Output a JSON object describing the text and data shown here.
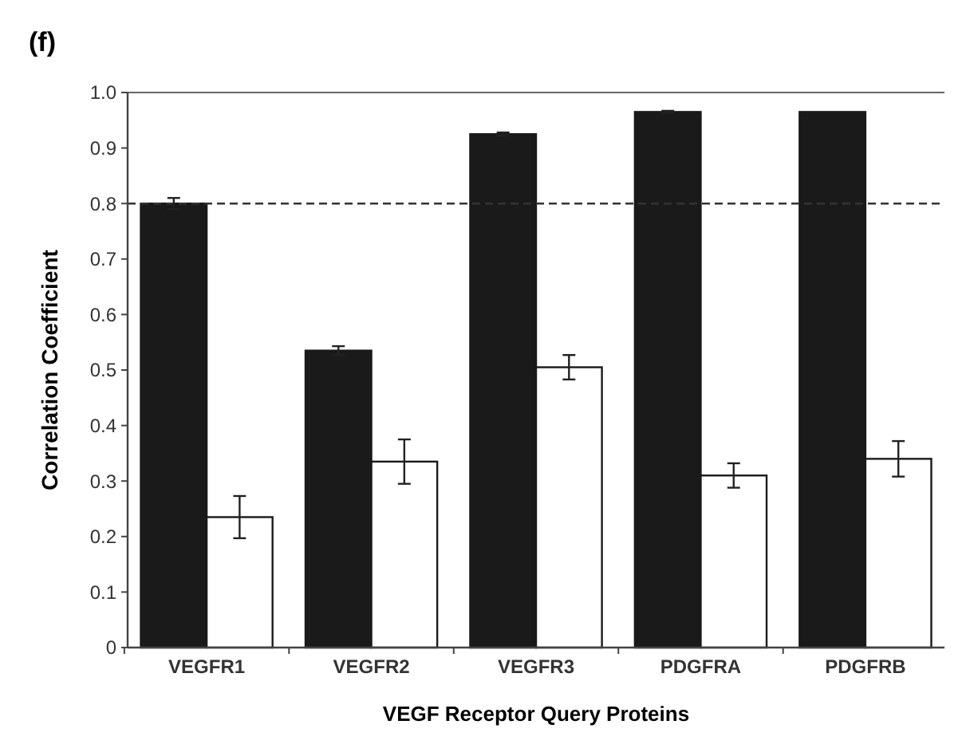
{
  "chart_data": {
    "type": "bar",
    "title": "(f)",
    "xlabel": "VEGF Receptor Query Proteins",
    "ylabel": "Correlation Coefficient",
    "categories": [
      "VEGFR1",
      "VEGFR2",
      "VEGFR3",
      "PDGFRA",
      "PDGFRB"
    ],
    "series": [
      {
        "color": "#1a1a1a",
        "values": [
          0.8,
          0.535,
          0.925,
          0.965,
          0.965
        ],
        "errors": [
          0.01,
          0.008,
          0.003,
          0.002,
          null
        ]
      },
      {
        "color": "#ffffff",
        "values": [
          0.235,
          0.335,
          0.505,
          0.31,
          0.34
        ],
        "errors": [
          0.038,
          0.04,
          0.022,
          0.022,
          0.032
        ]
      }
    ],
    "ylim": [
      0,
      1
    ],
    "yticks": [
      0,
      0.1,
      0.2,
      0.3,
      0.4,
      0.5,
      0.6,
      0.7,
      0.8,
      0.9,
      {
        "value": 1,
        "label": "1.0"
      }
    ],
    "ref_lines": [
      {
        "axis": "y",
        "value": 0.8,
        "line_style": "dashed",
        "color": "#333333"
      }
    ],
    "grid": false
  }
}
